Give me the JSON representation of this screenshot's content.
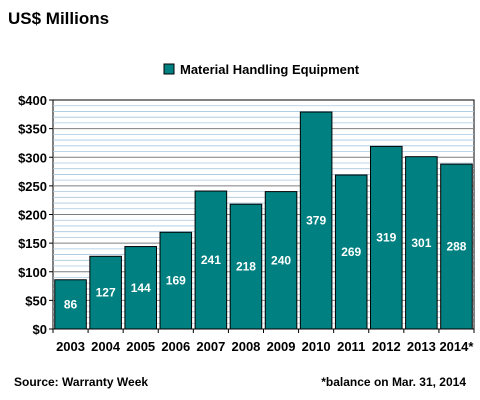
{
  "chart_data": {
    "type": "bar",
    "title": "US$ Millions",
    "categories": [
      "2003",
      "2004",
      "2005",
      "2006",
      "2007",
      "2008",
      "2009",
      "2010",
      "2011",
      "2012",
      "2013",
      "2014*"
    ],
    "series": [
      {
        "name": "Material Handling Equipment",
        "color": "#008080",
        "values": [
          86,
          127,
          144,
          169,
          241,
          218,
          240,
          379,
          269,
          319,
          301,
          288
        ]
      }
    ],
    "ylim": [
      0,
      400
    ],
    "y_ticks": [
      {
        "value": 0,
        "label": "$0"
      },
      {
        "value": 50,
        "label": "$50"
      },
      {
        "value": 100,
        "label": "$100"
      },
      {
        "value": 150,
        "label": "$150"
      },
      {
        "value": 200,
        "label": "$200"
      },
      {
        "value": 250,
        "label": "$250"
      },
      {
        "value": 300,
        "label": "$300"
      },
      {
        "value": 350,
        "label": "$350"
      },
      {
        "value": 400,
        "label": "$400"
      }
    ],
    "grid": true,
    "legend_position": "top-center",
    "xlabel": "",
    "ylabel": ""
  },
  "footer": {
    "source": "Source: Warranty Week",
    "note": "*balance on Mar. 31, 2014"
  }
}
